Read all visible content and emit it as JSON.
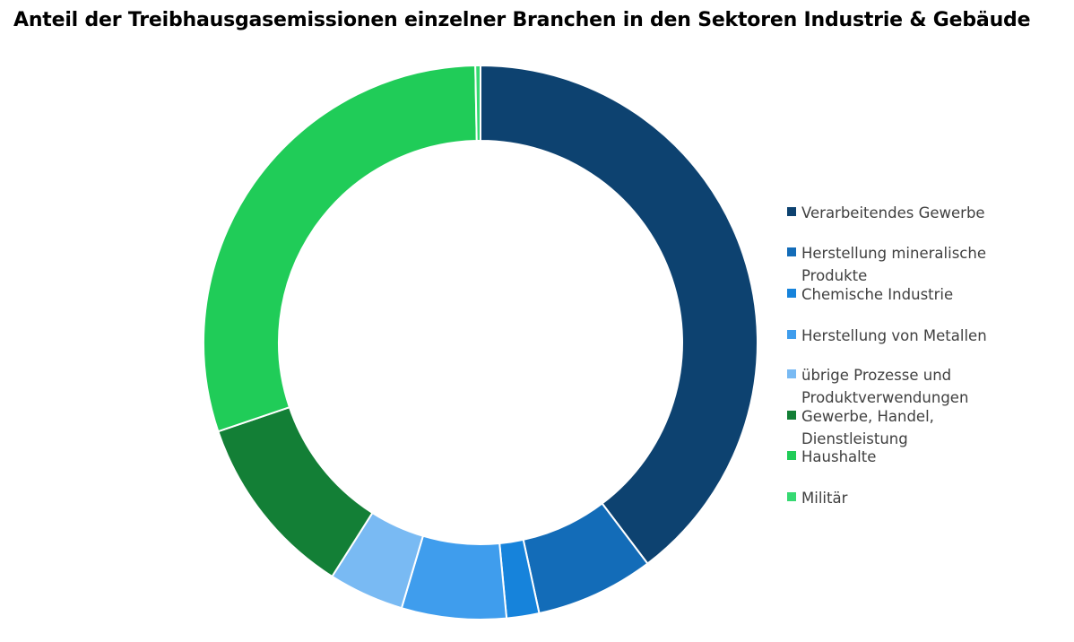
{
  "chart_data": {
    "type": "pie",
    "title": "Anteil der Treibhausgasemissionen einzelner Branchen in den Sektoren Industrie & Gebäude",
    "donut": true,
    "legend_position": "right",
    "series": [
      {
        "name": "Verarbeitendes Gewerbe",
        "value": 39.7,
        "color": "#0d4270"
      },
      {
        "name": "Herstellung mineralische Produkte",
        "value": 6.9,
        "color": "#136cb8"
      },
      {
        "name": "Chemische Industrie",
        "value": 1.9,
        "color": "#1683db"
      },
      {
        "name": "Herstellung von Metallen",
        "value": 6.1,
        "color": "#3f9ded"
      },
      {
        "name": "übrige Prozesse und Produktverwendungen",
        "value": 4.4,
        "color": "#79baf3"
      },
      {
        "name": "Gewerbe, Handel, Dienstleistung",
        "value": 10.8,
        "color": "#137f36"
      },
      {
        "name": "Haushalte",
        "value": 29.9,
        "color": "#20cc58"
      },
      {
        "name": "Militär",
        "value": 0.3,
        "color": "#36d972"
      }
    ]
  }
}
